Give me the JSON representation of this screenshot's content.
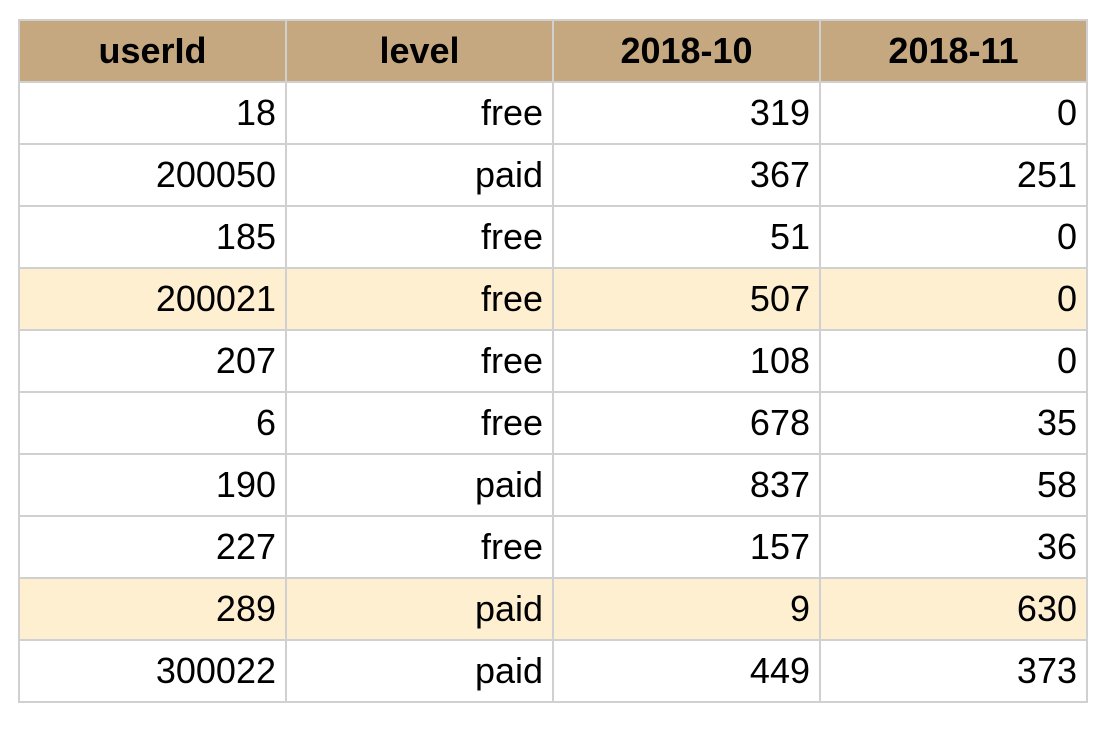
{
  "colors": {
    "header_bg": "#c5a780",
    "highlight_bg": "#fdefd0",
    "grid": "#d0d0d0"
  },
  "table": {
    "headers": [
      "userId",
      "level",
      "2018-10",
      "2018-11"
    ],
    "rows": [
      {
        "cells": [
          "18",
          "free",
          "319",
          "0"
        ],
        "highlighted": false
      },
      {
        "cells": [
          "200050",
          "paid",
          "367",
          "251"
        ],
        "highlighted": false
      },
      {
        "cells": [
          "185",
          "free",
          "51",
          "0"
        ],
        "highlighted": false
      },
      {
        "cells": [
          "200021",
          "free",
          "507",
          "0"
        ],
        "highlighted": true
      },
      {
        "cells": [
          "207",
          "free",
          "108",
          "0"
        ],
        "highlighted": false
      },
      {
        "cells": [
          "6",
          "free",
          "678",
          "35"
        ],
        "highlighted": false
      },
      {
        "cells": [
          "190",
          "paid",
          "837",
          "58"
        ],
        "highlighted": false
      },
      {
        "cells": [
          "227",
          "free",
          "157",
          "36"
        ],
        "highlighted": false
      },
      {
        "cells": [
          "289",
          "paid",
          "9",
          "630"
        ],
        "highlighted": true
      },
      {
        "cells": [
          "300022",
          "paid",
          "449",
          "373"
        ],
        "highlighted": false
      }
    ]
  }
}
